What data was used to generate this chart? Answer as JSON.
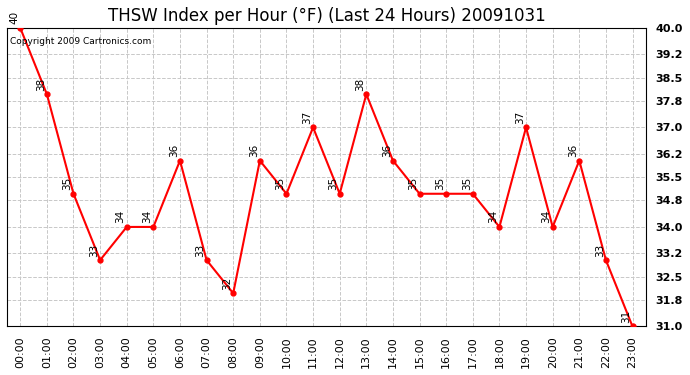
{
  "title": "THSW Index per Hour (°F) (Last 24 Hours) 20091031",
  "copyright": "Copyright 2009 Cartronics.com",
  "hours": [
    "00:00",
    "01:00",
    "02:00",
    "03:00",
    "04:00",
    "05:00",
    "06:00",
    "07:00",
    "08:00",
    "09:00",
    "10:00",
    "11:00",
    "12:00",
    "13:00",
    "14:00",
    "15:00",
    "16:00",
    "17:00",
    "18:00",
    "19:00",
    "20:00",
    "21:00",
    "22:00",
    "23:00"
  ],
  "values": [
    40,
    38,
    35,
    33,
    34,
    34,
    36,
    33,
    32,
    36,
    35,
    37,
    35,
    38,
    36,
    35,
    35,
    35,
    34,
    37,
    34,
    36,
    33,
    31
  ],
  "line_color": "#ff0000",
  "marker_color": "#ff0000",
  "bg_color": "#ffffff",
  "plot_bg_color": "#ffffff",
  "grid_color": "#c8c8c8",
  "ylim": [
    31.0,
    40.0
  ],
  "yticks": [
    31.0,
    31.8,
    32.5,
    33.2,
    34.0,
    34.8,
    35.5,
    36.2,
    37.0,
    37.8,
    38.5,
    39.2,
    40.0
  ],
  "ytick_labels": [
    "31.0",
    "31.8",
    "32.5",
    "33.2",
    "34.0",
    "34.8",
    "35.5",
    "36.2",
    "37.0",
    "37.8",
    "38.5",
    "39.2",
    "40.0"
  ],
  "title_fontsize": 12,
  "label_fontsize": 8,
  "annotation_fontsize": 7.5,
  "copyright_fontsize": 6.5
}
